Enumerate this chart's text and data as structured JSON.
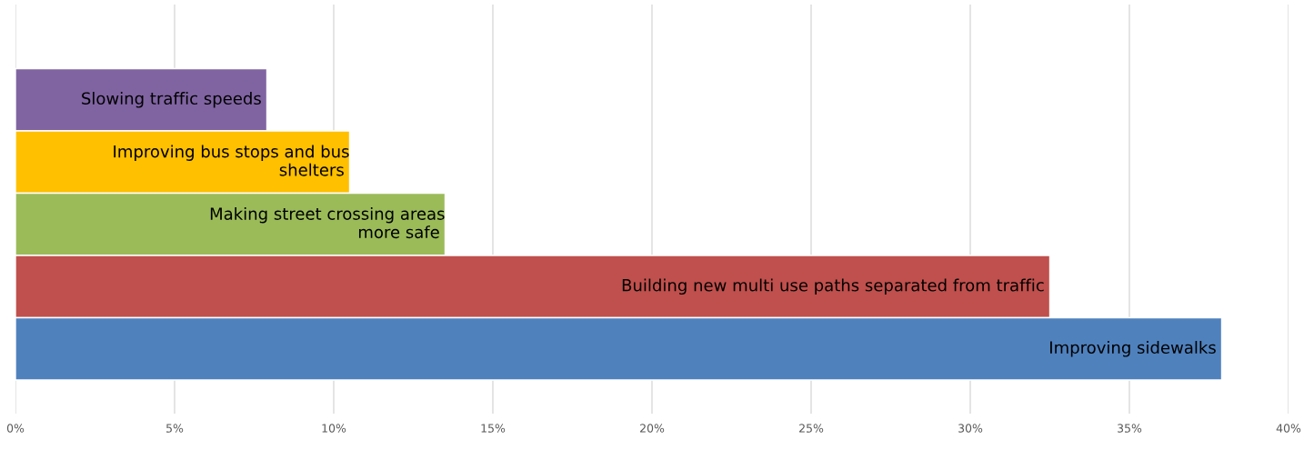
{
  "chart_data": {
    "type": "bar",
    "orientation": "horizontal",
    "categories": [
      "Slowing traffic speeds",
      "Improving bus stops and bus shelters",
      "Making street crossing areas more safe",
      "Building new multi use paths separated from traffic",
      "Improving sidewalks"
    ],
    "values": [
      7.9,
      10.5,
      13.5,
      32.5,
      37.9
    ],
    "colors": [
      "#8064a2",
      "#ffc000",
      "#9bbb59",
      "#c0504d",
      "#4f81bd"
    ],
    "xlim": [
      0,
      40
    ],
    "xticks": [
      {
        "value": 0,
        "label": "0%"
      },
      {
        "value": 5,
        "label": "5%"
      },
      {
        "value": 10,
        "label": "10%"
      },
      {
        "value": 15,
        "label": "15%"
      },
      {
        "value": 20,
        "label": "20%"
      },
      {
        "value": 25,
        "label": "25%"
      },
      {
        "value": 30,
        "label": "30%"
      },
      {
        "value": 35,
        "label": "35%"
      },
      {
        "value": 40,
        "label": "40%"
      }
    ],
    "grid": "x",
    "tick_labels": "x",
    "legend": false
  }
}
